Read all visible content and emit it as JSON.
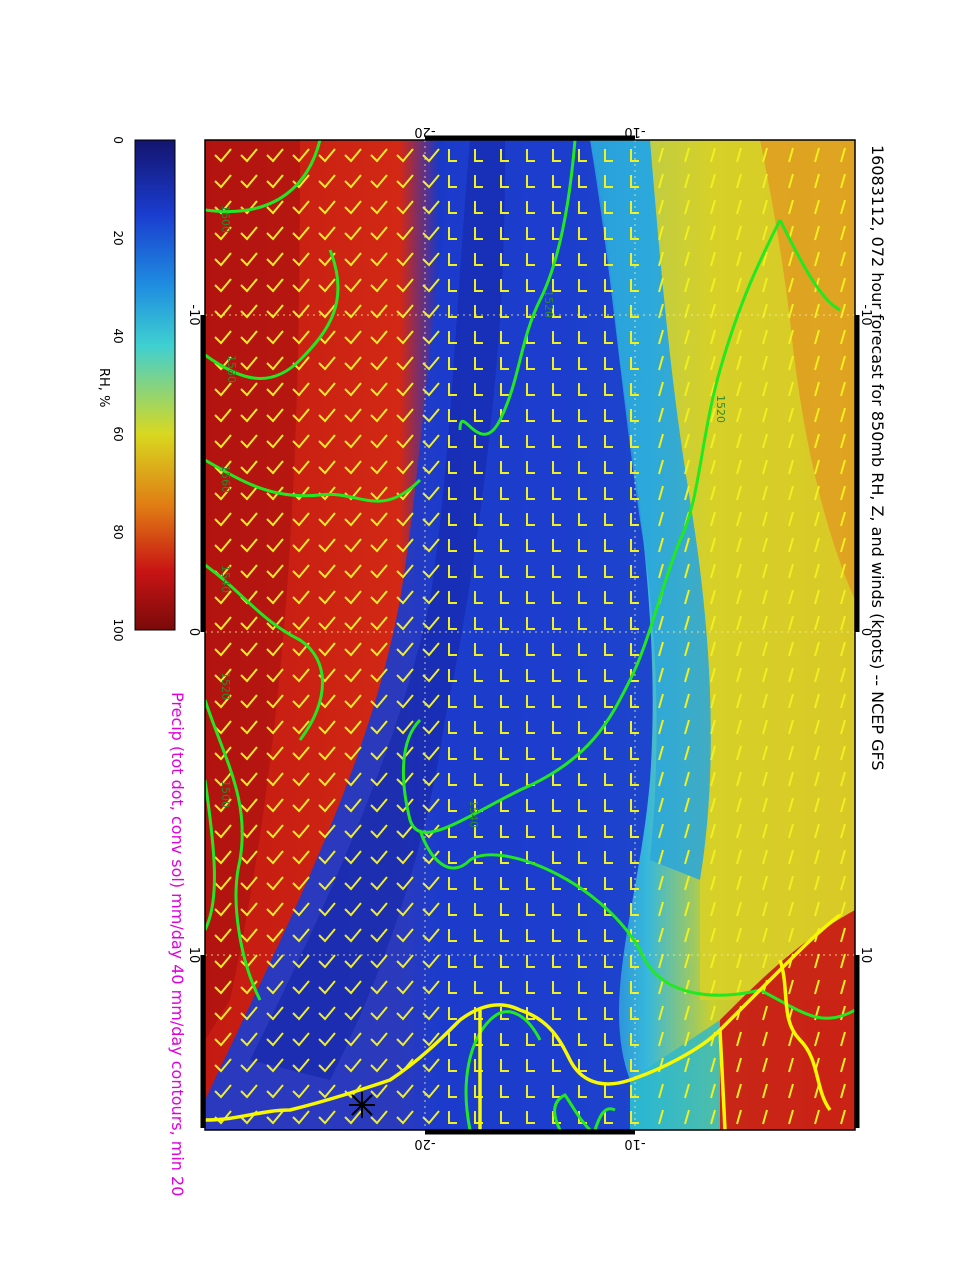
{
  "title": "16083112, 072 hour forecast for 850mb RH, Z, and winds (knots) -- NCEP GFS",
  "precip_note": "Precip (tot dot, conv sol) mm/day 40 mm/day contours, min 20",
  "colorbar": {
    "label": "RH, %",
    "ticks": [
      "0",
      "20",
      "40",
      "60",
      "80",
      "100"
    ],
    "colors": [
      "#14146e",
      "#1a3ccf",
      "#1f8fe0",
      "#3fd0d0",
      "#d8d820",
      "#e07a14",
      "#c81414",
      "#7a0a0a"
    ]
  },
  "axes": {
    "top_ticks": [
      "-20",
      "-10"
    ],
    "bottom_ticks": [
      "-20",
      "-10"
    ],
    "left_ticks": [
      "-10",
      "0",
      "10"
    ],
    "right_ticks": [
      "-10",
      "0",
      "10"
    ]
  },
  "contour_labels": [
    "1600",
    "1580",
    "1560",
    "1540",
    "1520",
    "1500",
    "1520",
    "1540",
    "1520"
  ],
  "colors": {
    "contour": "#22e822",
    "wind_barb": "#f0f020",
    "coastline": "#f8f800",
    "precip_text": "#e000e0",
    "frame": "#000000"
  }
}
